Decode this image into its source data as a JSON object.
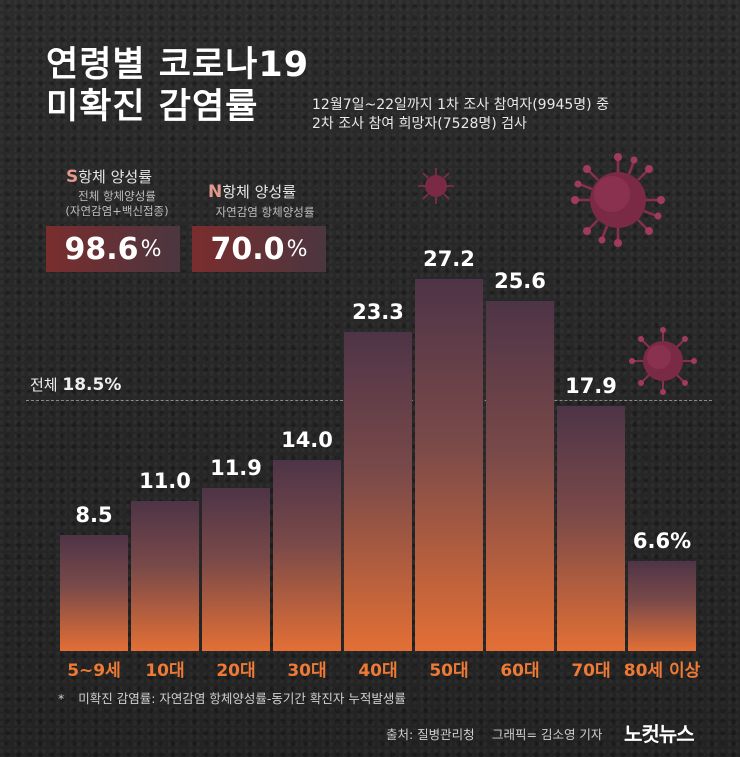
{
  "title": {
    "line1": "연령별 코로나19",
    "line2": "미확진 감염률"
  },
  "subtitle": {
    "line1": "12월7일~22일까지 1차 조사 참여자(9945명) 중",
    "line2": "2차 조사 참여 희망자(7528명) 검사"
  },
  "stats": {
    "s": {
      "letter": "S",
      "label": "항체 양성률",
      "note1": "전체 항체양성률",
      "note2": "(자연감염+백신접종)",
      "value": "98.6",
      "unit": "%"
    },
    "n": {
      "letter": "N",
      "label": "항체 양성률",
      "note1": "자연감염 항체양성률",
      "value": "70.0",
      "unit": "%"
    }
  },
  "average": {
    "label": "전체",
    "value": "18.5%"
  },
  "chart_data": {
    "type": "bar",
    "title": "연령별 코로나19 미확진 감염률",
    "categories": [
      "5~9세",
      "10대",
      "20대",
      "30대",
      "40대",
      "50대",
      "60대",
      "70대",
      "80세 이상"
    ],
    "values": [
      8.5,
      11.0,
      11.9,
      14.0,
      23.3,
      27.2,
      25.6,
      17.9,
      6.6
    ],
    "value_labels": [
      "8.5",
      "11.0",
      "11.9",
      "14.0",
      "23.3",
      "27.2",
      "25.6",
      "17.9",
      "6.6%"
    ],
    "reference_line": 18.5,
    "unit": "%",
    "ylim": [
      0,
      27.2
    ]
  },
  "footnote": {
    "star": "*",
    "text": "미확진 감염률: 자연감염 항체양성률-동기간 확진자 누적발생률"
  },
  "credits": {
    "source": "출처: 질병관리청",
    "graphic": "그래픽= 김소영 기자",
    "logo": "노컷뉴스"
  },
  "colors": {
    "bar_top": "#4e3447",
    "bar_bottom": "#e36f35",
    "category": "#ef7a35",
    "accent_pink": "#e39a8e"
  }
}
